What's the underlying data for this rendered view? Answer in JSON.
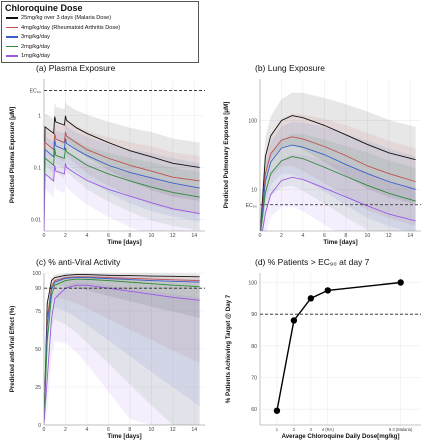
{
  "legend": {
    "title": "Chloroquine Dose",
    "items": [
      {
        "label": "25mg/kg over 3 days (Malaria Dose)",
        "color": "#111111"
      },
      {
        "label": "4mg/kg/day (Rheumatoid Arthritis Dose)",
        "color": "#c0504d"
      },
      {
        "label": "3mg/kg/day",
        "color": "#3a5fcd"
      },
      {
        "label": "2mg/kg/day",
        "color": "#2e8b3a"
      },
      {
        "label": "1mg/kg/day",
        "color": "#9b59e6"
      }
    ]
  },
  "chart_data": [
    {
      "panel": "a",
      "type": "line",
      "title": "(a) Plasma Exposure",
      "xlabel": "Time [days]",
      "ylabel": "Predicted Plasma Exposure [μM]",
      "yscale": "log",
      "xlim": [
        0,
        15
      ],
      "ylim": [
        0.006,
        5
      ],
      "xticks": [
        "0",
        "2",
        "4",
        "6",
        "8",
        "10",
        "12",
        "14"
      ],
      "yticks": [
        "0.01",
        "0.1",
        "1"
      ],
      "reference_line": {
        "label": "EC₉₀",
        "y": 3.0,
        "style": "dashed"
      },
      "series": [
        {
          "name": "25mg/kg over 3 days (Malaria Dose)",
          "x": [
            0,
            0.1,
            0.9,
            1.0,
            1.1,
            1.9,
            2.0,
            2.1,
            3,
            4,
            6,
            8,
            10,
            12,
            14.5
          ],
          "y": [
            0.04,
            0.6,
            0.45,
            0.95,
            0.75,
            0.65,
            0.98,
            0.8,
            0.58,
            0.45,
            0.3,
            0.21,
            0.16,
            0.12,
            0.1
          ]
        },
        {
          "name": "4mg/kg/day (Rheumatoid Arthritis Dose)",
          "x": [
            0,
            0.1,
            0.9,
            1.0,
            1.1,
            1.9,
            2.0,
            2.1,
            3,
            4,
            6,
            8,
            10,
            12,
            14.5
          ],
          "y": [
            0.02,
            0.3,
            0.22,
            0.45,
            0.35,
            0.3,
            0.48,
            0.4,
            0.3,
            0.22,
            0.15,
            0.11,
            0.085,
            0.065,
            0.055
          ]
        },
        {
          "name": "3mg/kg/day",
          "x": [
            0,
            0.1,
            0.9,
            1.0,
            1.1,
            1.9,
            2.0,
            2.1,
            3,
            4,
            6,
            8,
            10,
            12,
            14.5
          ],
          "y": [
            0.016,
            0.22,
            0.16,
            0.34,
            0.26,
            0.22,
            0.36,
            0.29,
            0.22,
            0.17,
            0.11,
            0.08,
            0.063,
            0.05,
            0.04
          ]
        },
        {
          "name": "2mg/kg/day",
          "x": [
            0,
            0.1,
            0.9,
            1.0,
            1.1,
            1.9,
            2.0,
            2.1,
            3,
            4,
            6,
            8,
            10,
            12,
            14.5
          ],
          "y": [
            0.01,
            0.15,
            0.11,
            0.23,
            0.17,
            0.15,
            0.24,
            0.2,
            0.15,
            0.11,
            0.075,
            0.055,
            0.042,
            0.033,
            0.027
          ]
        },
        {
          "name": "1mg/kg/day",
          "x": [
            0,
            0.1,
            0.9,
            1.0,
            1.1,
            1.9,
            2.0,
            2.1,
            3,
            4,
            6,
            8,
            10,
            12,
            14.5
          ],
          "y": [
            0.005,
            0.075,
            0.055,
            0.11,
            0.085,
            0.075,
            0.12,
            0.1,
            0.075,
            0.056,
            0.038,
            0.028,
            0.021,
            0.016,
            0.013
          ]
        }
      ]
    },
    {
      "panel": "b",
      "type": "line",
      "title": "(b) Lung Exposure",
      "xlabel": "Time [days]",
      "ylabel": "Predicted Pulmonary Exposure [μM]",
      "yscale": "log",
      "xlim": [
        0,
        15
      ],
      "ylim": [
        2.5,
        400
      ],
      "xticks": [
        "0",
        "2",
        "4",
        "6",
        "8",
        "10",
        "12",
        "14"
      ],
      "yticks": [
        "10",
        "100"
      ],
      "reference_line": {
        "label": "EC₉₀",
        "y": 6.0,
        "style": "dashed"
      },
      "series": [
        {
          "name": "25mg/kg over 3 days (Malaria Dose)",
          "x": [
            0,
            0.5,
            1,
            2,
            3,
            4,
            6,
            8,
            10,
            12,
            14.5
          ],
          "y": [
            2,
            30,
            60,
            100,
            118,
            110,
            85,
            62,
            45,
            34,
            27
          ]
        },
        {
          "name": "4mg/kg/day (Rheumatoid Arthritis Dose)",
          "x": [
            0,
            0.5,
            1,
            2,
            3,
            4,
            6,
            8,
            10,
            12,
            14.5
          ],
          "y": [
            2,
            17,
            33,
            52,
            58,
            54,
            42,
            31,
            22,
            17,
            13
          ]
        },
        {
          "name": "3mg/kg/day",
          "x": [
            0,
            0.5,
            1,
            2,
            3,
            4,
            6,
            8,
            10,
            12,
            14.5
          ],
          "y": [
            2,
            13,
            25,
            40,
            44,
            41,
            32,
            23,
            17,
            13,
            10
          ]
        },
        {
          "name": "2mg/kg/day",
          "x": [
            0,
            0.5,
            1,
            2,
            3,
            4,
            6,
            8,
            10,
            12,
            14.5
          ],
          "y": [
            2,
            9,
            17,
            26,
            30,
            28,
            21,
            15.5,
            11.5,
            8.8,
            6.8
          ]
        },
        {
          "name": "1mg/kg/day",
          "x": [
            0,
            0.5,
            1,
            2,
            3,
            4,
            6,
            8,
            10,
            12,
            14.5
          ],
          "y": [
            1.5,
            4.5,
            8.5,
            13.5,
            15,
            14,
            10.5,
            7.8,
            5.8,
            4.4,
            3.5
          ]
        }
      ]
    },
    {
      "panel": "c",
      "type": "line",
      "title": "(c) % anti-Viral Activity",
      "xlabel": "Time [days]",
      "ylabel": "Predicted anti-Viral Effect (%)",
      "xlim": [
        0,
        15
      ],
      "ylim": [
        0,
        100
      ],
      "xticks": [
        "0",
        "2",
        "4",
        "6",
        "8",
        "10",
        "12",
        "14"
      ],
      "yticks": [
        "0",
        "25",
        "50",
        "75",
        "90",
        "100"
      ],
      "reference_line": {
        "y": 90,
        "style": "dashed"
      },
      "series": [
        {
          "name": "25mg/kg over 3 days (Malaria Dose)",
          "x": [
            0,
            0.3,
            0.7,
            1,
            2,
            3,
            4,
            6,
            8,
            10,
            12,
            14.5
          ],
          "y": [
            2,
            80,
            95,
            97,
            98.5,
            99,
            99,
            98.5,
            98.3,
            98,
            97.8,
            97.5
          ]
        },
        {
          "name": "4mg/kg/day (Rheumatoid Arthritis Dose)",
          "x": [
            0,
            0.3,
            0.7,
            1,
            2,
            3,
            4,
            6,
            8,
            10,
            12,
            14.5
          ],
          "y": [
            2,
            70,
            91,
            95,
            97,
            97.5,
            97.5,
            97,
            96.5,
            96,
            95.5,
            95
          ]
        },
        {
          "name": "3mg/kg/day",
          "x": [
            0,
            0.3,
            0.7,
            1,
            2,
            3,
            4,
            6,
            8,
            10,
            12,
            14.5
          ],
          "y": [
            2,
            65,
            89,
            94,
            96.5,
            97,
            97,
            96.3,
            95.7,
            95,
            94.5,
            94
          ]
        },
        {
          "name": "2mg/kg/day",
          "x": [
            0,
            0.3,
            0.7,
            1,
            2,
            3,
            4,
            6,
            8,
            10,
            12,
            14.5
          ],
          "y": [
            2,
            55,
            85,
            92,
            95,
            96,
            95.8,
            95,
            94,
            93,
            92,
            91
          ]
        },
        {
          "name": "1mg/kg/day",
          "x": [
            0,
            0.3,
            0.7,
            1,
            2,
            3,
            4,
            6,
            8,
            10,
            12,
            14.5
          ],
          "y": [
            1,
            30,
            70,
            83,
            90,
            92,
            92,
            90,
            88,
            86,
            84,
            82
          ]
        }
      ]
    },
    {
      "panel": "d",
      "type": "scatter",
      "title": "(d) % Patients > EC₉₀ at day 7",
      "xlabel": "Average Chloroquine Daily Dose[mg/kg]",
      "ylabel": "% Patients Achieving Target @ Day 7",
      "xlim": [
        0,
        9.5
      ],
      "ylim": [
        55,
        103
      ],
      "xticks": [
        "1",
        "2",
        "3",
        "4 (RA)",
        "8.3 (Malaria)"
      ],
      "yticks": [
        "60",
        "70",
        "80",
        "90",
        "100"
      ],
      "reference_line": {
        "y": 90,
        "style": "dashed"
      },
      "points": {
        "x": [
          1,
          2,
          3,
          4,
          8.3
        ],
        "y": [
          59.5,
          88,
          95,
          97.5,
          100
        ]
      }
    }
  ]
}
